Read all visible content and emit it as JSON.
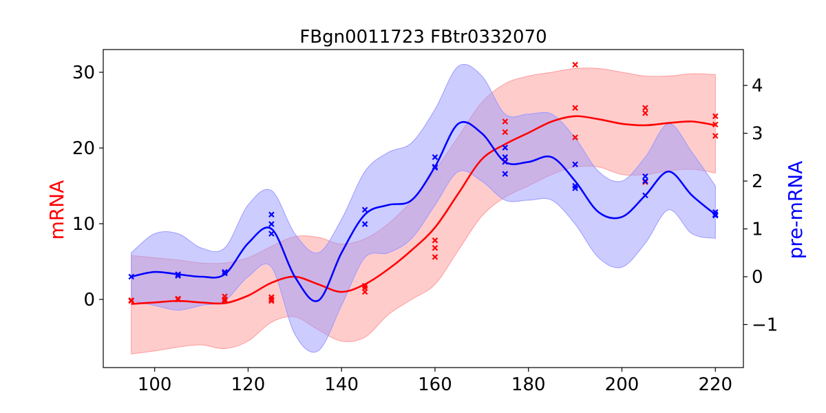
{
  "chart_data": {
    "type": "line",
    "title": "FBgn0011723 FBtr0332070",
    "xlabel": "",
    "xlim": [
      89,
      226
    ],
    "xticks": [
      100,
      120,
      140,
      160,
      180,
      200,
      220
    ],
    "y_left": {
      "label": "mRNA",
      "color": "#ff0000",
      "lim": [
        -9,
        33
      ],
      "ticks": [
        0,
        10,
        20,
        30
      ]
    },
    "y_right": {
      "label": "pre-mRNA",
      "color": "#0000ff",
      "lim": [
        -1.9,
        4.75
      ],
      "ticks": [
        -1,
        0,
        1,
        2,
        3,
        4
      ],
      "tick_labels": [
        "−1",
        "0",
        "1",
        "2",
        "3",
        "4"
      ]
    },
    "series": [
      {
        "name": "mRNA",
        "axis": "left",
        "color": "#ff0000",
        "fill_color": "#ff9999",
        "curve_x": [
          95,
          100,
          105,
          110,
          115,
          120,
          125,
          130,
          135,
          140,
          145,
          150,
          155,
          160,
          165,
          170,
          175,
          180,
          185,
          190,
          195,
          200,
          205,
          210,
          215,
          220
        ],
        "mean": [
          -0.6,
          -0.4,
          -0.2,
          -0.4,
          -0.5,
          0.5,
          2.2,
          3.0,
          2.0,
          1.0,
          2.0,
          4.0,
          6.5,
          9.5,
          14.0,
          18.5,
          20.5,
          22.0,
          23.5,
          24.2,
          23.8,
          23.2,
          23.0,
          23.3,
          23.5,
          23.0
        ],
        "upper": [
          5.8,
          5.5,
          5.2,
          4.8,
          4.8,
          5.5,
          7.0,
          8.3,
          8.2,
          7.3,
          8.0,
          10.0,
          13.0,
          17.0,
          21.5,
          26.0,
          28.5,
          29.5,
          30.0,
          30.5,
          30.5,
          30.0,
          29.5,
          29.5,
          29.8,
          29.7
        ],
        "lower": [
          -7.2,
          -6.8,
          -6.3,
          -6.0,
          -6.5,
          -5.5,
          -3.0,
          -2.3,
          -4.0,
          -5.5,
          -5.0,
          -2.0,
          0.0,
          2.0,
          6.5,
          11.0,
          13.5,
          15.0,
          16.5,
          17.5,
          17.5,
          16.5,
          16.5,
          17.0,
          17.2,
          16.7
        ],
        "points_x": [
          95,
          95,
          105,
          105,
          115,
          115,
          115,
          125,
          125,
          125,
          145,
          145,
          145,
          160,
          160,
          160,
          175,
          175,
          175,
          190,
          190,
          190,
          205,
          205,
          205,
          220,
          220,
          220
        ],
        "points_y": [
          -0.1,
          -0.2,
          0.0,
          0.1,
          0.4,
          0.0,
          -0.2,
          0.3,
          0.0,
          -0.2,
          1.8,
          1.0,
          1.5,
          7.8,
          6.8,
          5.6,
          23.5,
          22.1,
          18.2,
          31.0,
          25.3,
          21.4,
          25.3,
          24.6,
          15.5,
          24.2,
          23.1,
          21.6
        ]
      },
      {
        "name": "pre-mRNA",
        "axis": "right",
        "color": "#0000ff",
        "fill_color": "#9999ff",
        "curve_x": [
          95,
          100,
          105,
          110,
          115,
          120,
          125,
          130,
          135,
          140,
          145,
          150,
          155,
          160,
          165,
          170,
          175,
          180,
          185,
          190,
          195,
          200,
          205,
          210,
          215,
          220
        ],
        "mean": [
          0.0,
          0.1,
          0.05,
          0.0,
          0.05,
          0.7,
          1.0,
          0.0,
          -0.5,
          0.5,
          1.3,
          1.5,
          1.6,
          2.3,
          3.2,
          3.0,
          2.4,
          2.4,
          2.5,
          2.0,
          1.35,
          1.25,
          1.7,
          2.2,
          1.7,
          1.3
        ],
        "upper": [
          0.5,
          0.9,
          0.9,
          0.6,
          0.6,
          1.5,
          1.8,
          0.9,
          0.5,
          1.2,
          2.2,
          2.6,
          2.8,
          3.5,
          4.4,
          4.2,
          3.4,
          3.4,
          3.4,
          2.9,
          2.2,
          2.0,
          2.5,
          3.2,
          2.6,
          1.9
        ],
        "lower": [
          -0.5,
          -0.6,
          -0.7,
          -0.6,
          -0.5,
          0.0,
          0.2,
          -1.2,
          -1.55,
          -0.6,
          0.4,
          0.5,
          0.8,
          1.5,
          2.2,
          2.0,
          1.6,
          1.6,
          1.6,
          1.1,
          0.4,
          0.2,
          0.7,
          1.4,
          0.9,
          0.8
        ],
        "points_x": [
          95,
          105,
          105,
          115,
          115,
          125,
          125,
          125,
          145,
          145,
          160,
          160,
          160,
          175,
          175,
          175,
          175,
          190,
          190,
          190,
          205,
          205,
          205,
          220,
          220,
          220
        ],
        "points_y": [
          0.0,
          0.05,
          0.02,
          0.1,
          0.07,
          1.3,
          1.1,
          0.9,
          1.4,
          1.1,
          2.5,
          2.3,
          2.28,
          2.7,
          2.5,
          2.4,
          2.15,
          2.35,
          1.9,
          1.85,
          2.1,
          2.0,
          1.7,
          1.35,
          1.3,
          1.28
        ]
      }
    ]
  }
}
